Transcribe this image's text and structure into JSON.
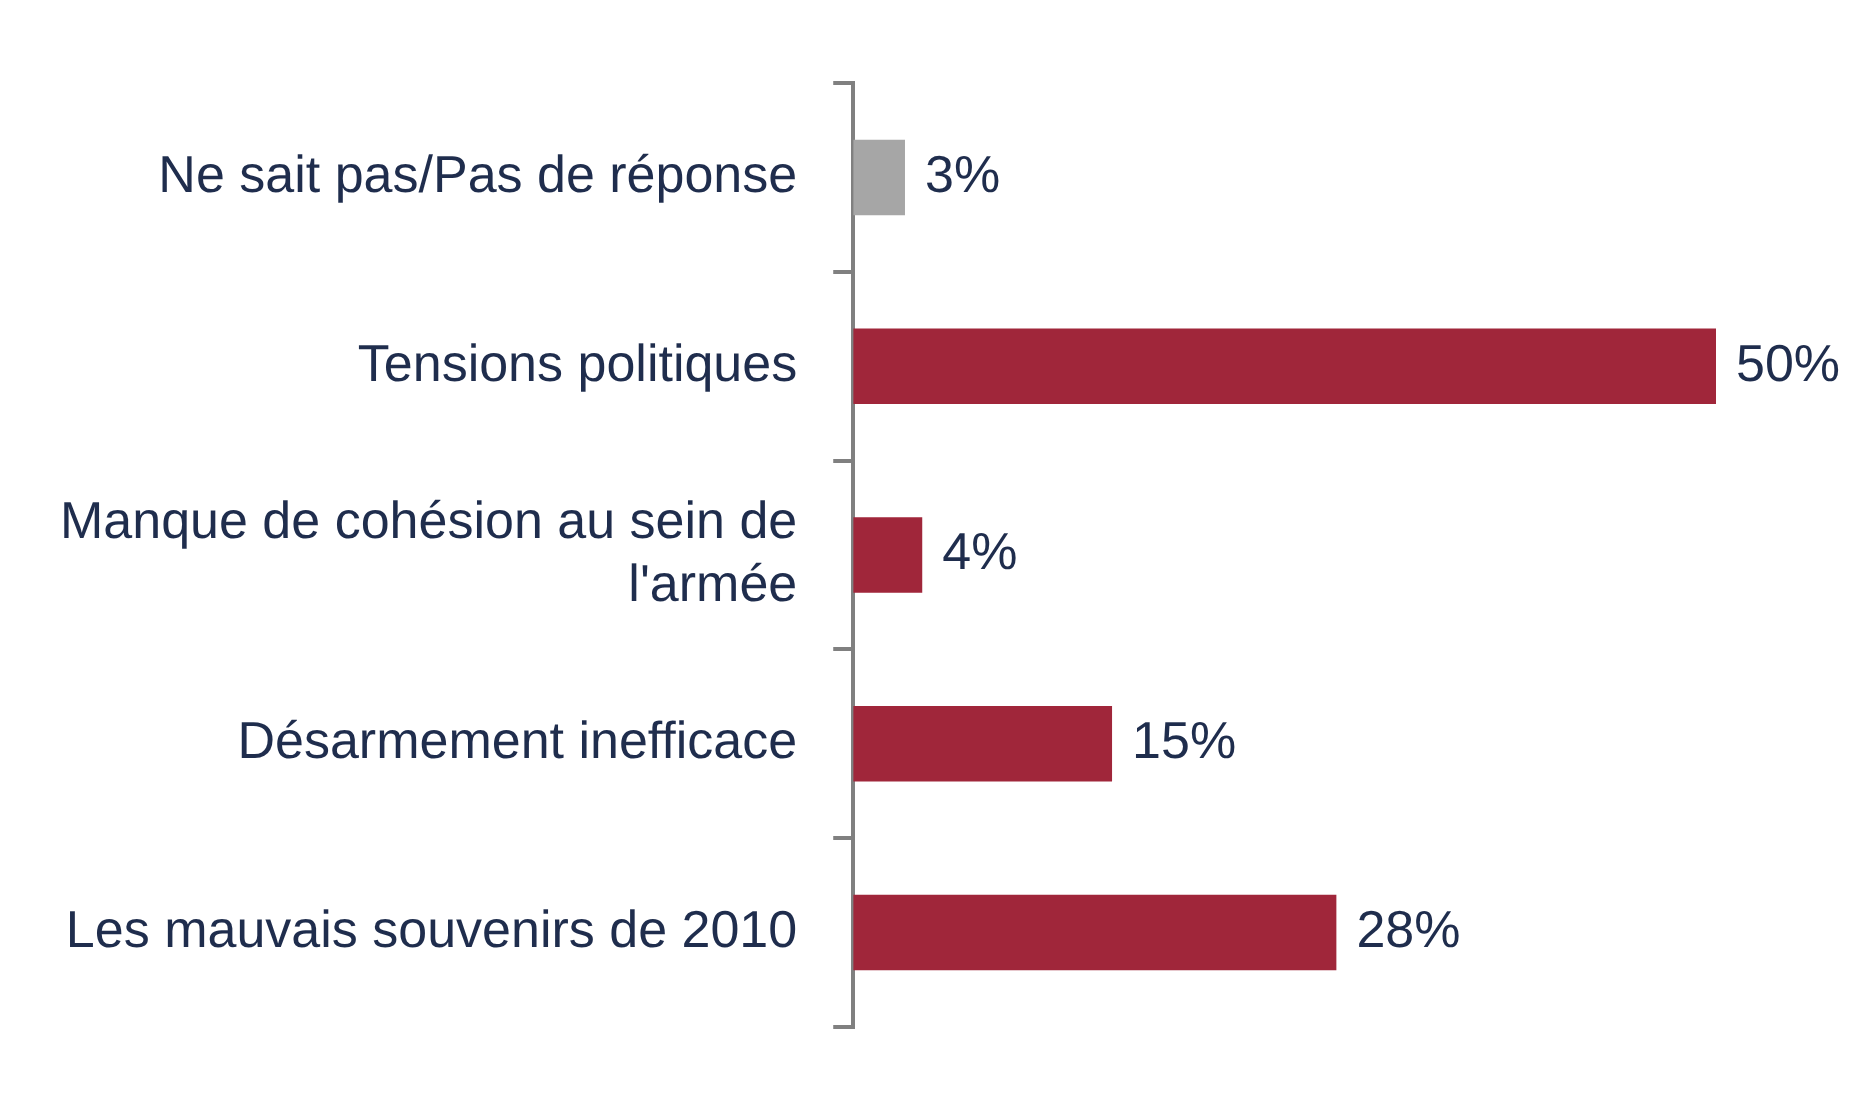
{
  "chart_data": {
    "type": "bar",
    "orientation": "horizontal",
    "categories": [
      "Ne sait pas/Pas de réponse",
      "Tensions politiques",
      "Manque de cohésion au sein de l'armée",
      "Désarmement inefficace",
      "Les mauvais souvenirs de 2010"
    ],
    "values": [
      3,
      50,
      4,
      15,
      28
    ],
    "colors": [
      "#a6a6a6",
      "#a0263a",
      "#a0263a",
      "#a0263a",
      "#a0263a"
    ],
    "value_labels": [
      "3%",
      "50%",
      "4%",
      "15%",
      "28%"
    ],
    "legend": false,
    "grid": false
  }
}
